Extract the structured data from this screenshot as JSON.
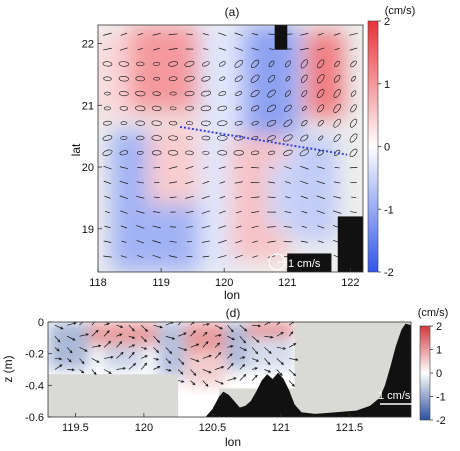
{
  "chart_data": [
    {
      "panel": "(a)",
      "type": "heatmap",
      "xlabel": "lon",
      "ylabel": "lat",
      "xlim": [
        118,
        122.2
      ],
      "ylim": [
        18.3,
        22.3
      ],
      "xticks": [
        "118",
        "119",
        "120",
        "121",
        "122"
      ],
      "yticks": [
        "19",
        "20",
        "21",
        "22"
      ],
      "colorbar": {
        "label": "(cm/s)",
        "ticks": [
          "2",
          "1",
          "0",
          "-1",
          "-2"
        ],
        "min": -2,
        "max": 2,
        "colors": [
          "#3155e8",
          "#ffffff",
          "#e8323a"
        ]
      },
      "scale_label": "1 cm/s",
      "section_line": {
        "start": [
          119.3,
          20.65
        ],
        "end": [
          121.95,
          20.2
        ]
      },
      "patches": [
        {
          "x": [
            118.0,
            118.5
          ],
          "y": [
            20.8,
            22.2
          ],
          "value": 0.4
        },
        {
          "x": [
            118.5,
            119.6
          ],
          "y": [
            20.9,
            22.3
          ],
          "value": 1.0
        },
        {
          "x": [
            118.2,
            119.6
          ],
          "y": [
            18.3,
            20.6
          ],
          "value": -0.9
        },
        {
          "x": [
            118.8,
            120.0
          ],
          "y": [
            19.4,
            20.7
          ],
          "value": 0.5
        },
        {
          "x": [
            119.6,
            120.3
          ],
          "y": [
            18.3,
            22.3
          ],
          "value": -0.3
        },
        {
          "x": [
            120.3,
            121.2
          ],
          "y": [
            20.5,
            22.3
          ],
          "value": -1.1
        },
        {
          "x": [
            120.1,
            121.0
          ],
          "y": [
            18.5,
            20.5
          ],
          "value": 0.6
        },
        {
          "x": [
            120.7,
            121.3
          ],
          "y": [
            19.0,
            20.1
          ],
          "value": -0.5
        },
        {
          "x": [
            121.3,
            121.9
          ],
          "y": [
            20.8,
            22.2
          ],
          "value": 1.3
        },
        {
          "x": [
            121.1,
            121.8
          ],
          "y": [
            18.8,
            20.5
          ],
          "value": -0.6
        }
      ],
      "land": [
        {
          "lon": [
            120.8,
            121.0
          ],
          "lat": [
            21.9,
            22.3
          ]
        },
        {
          "lon": [
            121.8,
            122.2
          ],
          "lat": [
            18.3,
            19.2
          ]
        },
        {
          "lon": [
            121.0,
            121.7
          ],
          "lat": [
            18.3,
            18.6
          ]
        }
      ]
    },
    {
      "panel": "(d)",
      "type": "heatmap",
      "xlabel": "lon",
      "ylabel": "z (m)",
      "xlim": [
        119.3,
        121.95
      ],
      "ylim": [
        -0.6,
        0
      ],
      "xticks": [
        "119.5",
        "120",
        "120.5",
        "121",
        "121.5"
      ],
      "yticks": [
        "0",
        "-0.2",
        "-0.4",
        "-0.6"
      ],
      "colorbar": {
        "label": "(cm/s)",
        "ticks": [
          "2",
          "1",
          "0",
          "-1",
          "-2"
        ],
        "min": -2,
        "max": 2,
        "colors": [
          "#2c4f9e",
          "#ffffff",
          "#d03a3e"
        ]
      },
      "scale_label": "1 cm/s",
      "patches": [
        {
          "x": [
            119.3,
            119.6
          ],
          "y": [
            -0.3,
            0
          ],
          "value": -0.8
        },
        {
          "x": [
            119.6,
            120.1
          ],
          "y": [
            -0.15,
            0
          ],
          "value": 1.0
        },
        {
          "x": [
            119.7,
            120.0
          ],
          "y": [
            -0.3,
            -0.15
          ],
          "value": -0.5
        },
        {
          "x": [
            120.1,
            120.3
          ],
          "y": [
            -0.35,
            0
          ],
          "value": -0.7
        },
        {
          "x": [
            120.3,
            120.6
          ],
          "y": [
            -0.2,
            0
          ],
          "value": 1.0
        },
        {
          "x": [
            120.3,
            120.6
          ],
          "y": [
            -0.4,
            -0.2
          ],
          "value": 0.5
        },
        {
          "x": [
            120.6,
            120.8
          ],
          "y": [
            -0.3,
            0
          ],
          "value": -0.8
        },
        {
          "x": [
            120.75,
            121.1
          ],
          "y": [
            -0.1,
            0
          ],
          "value": 1.1
        },
        {
          "x": [
            120.75,
            121.1
          ],
          "y": [
            -0.3,
            -0.1
          ],
          "value": -0.4
        }
      ],
      "mask": [
        {
          "x": [
            119.3,
            120.25
          ],
          "y": [
            -0.6,
            -0.33
          ]
        },
        {
          "x": [
            120.55,
            121.95
          ],
          "y": [
            -0.6,
            -0.42
          ]
        },
        {
          "x": [
            121.1,
            121.95
          ],
          "y": [
            -0.6,
            0
          ]
        }
      ],
      "bottom_profile": [
        [
          120.45,
          -0.6
        ],
        [
          120.5,
          -0.55
        ],
        [
          120.55,
          -0.47
        ],
        [
          120.58,
          -0.44
        ],
        [
          120.62,
          -0.46
        ],
        [
          120.66,
          -0.5
        ],
        [
          120.7,
          -0.54
        ],
        [
          120.74,
          -0.53
        ],
        [
          120.78,
          -0.5
        ],
        [
          120.82,
          -0.44
        ],
        [
          120.86,
          -0.37
        ],
        [
          120.9,
          -0.33
        ],
        [
          120.94,
          -0.36
        ],
        [
          120.98,
          -0.32
        ],
        [
          121.02,
          -0.36
        ],
        [
          121.06,
          -0.43
        ],
        [
          121.1,
          -0.52
        ],
        [
          121.15,
          -0.57
        ],
        [
          121.25,
          -0.58
        ],
        [
          121.4,
          -0.57
        ],
        [
          121.55,
          -0.56
        ],
        [
          121.65,
          -0.53
        ],
        [
          121.72,
          -0.48
        ],
        [
          121.76,
          -0.4
        ],
        [
          121.8,
          -0.28
        ],
        [
          121.84,
          -0.15
        ],
        [
          121.88,
          -0.05
        ],
        [
          121.91,
          -0.01
        ],
        [
          121.95,
          -0.02
        ],
        [
          121.95,
          -0.6
        ]
      ]
    }
  ]
}
